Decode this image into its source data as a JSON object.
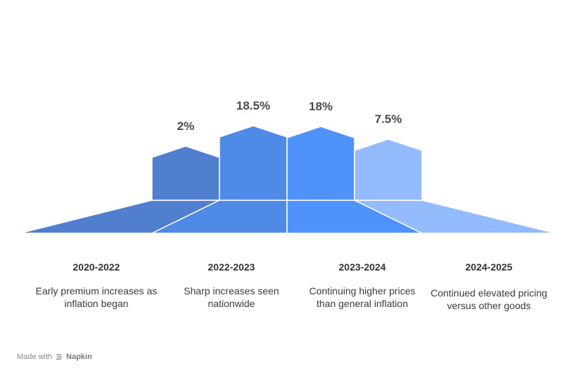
{
  "chart_data": {
    "type": "bar",
    "categories": [
      "2020-2022",
      "2022-2023",
      "2023-2024",
      "2024-2025"
    ],
    "values": [
      2,
      18.5,
      18,
      7.5
    ],
    "value_labels": [
      "2%",
      "18.5%",
      "18%",
      "7.5%"
    ],
    "descriptions": [
      "Early premium increases as inflation began",
      "Sharp increases seen nationwide",
      "Continuing higher prices than general inflation",
      "Continued elevated pricing versus other goods"
    ],
    "colors": [
      "#517fcf",
      "#4e8ae6",
      "#4f92fb",
      "#93bbfd"
    ],
    "title": "",
    "xlabel": "",
    "ylabel": ""
  },
  "footer": {
    "made_with": "Made with",
    "brand": "Napkin"
  }
}
